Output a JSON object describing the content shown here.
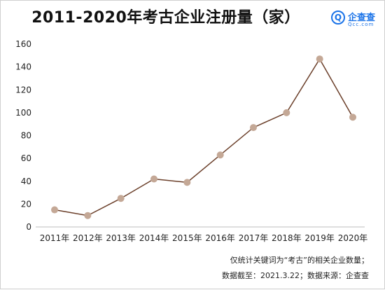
{
  "chart_data": {
    "type": "line",
    "title": "2011-2020年考古企业注册量（家）",
    "categories": [
      "2011年",
      "2012年",
      "2013年",
      "2014年",
      "2015年",
      "2016年",
      "2017年",
      "2018年",
      "2019年",
      "2020年"
    ],
    "values": [
      15,
      10,
      25,
      42,
      39,
      63,
      87,
      100,
      147,
      96
    ],
    "ylim": [
      0,
      160
    ],
    "yticks": [
      0,
      20,
      40,
      60,
      80,
      100,
      120,
      140,
      160
    ],
    "grid": false,
    "legend": "none",
    "line_color": "#6b3f2a",
    "marker_color": "#c4a896"
  },
  "brand": {
    "name": "企查查",
    "domain": "Qcc.com",
    "icon": "qcc-logo-icon"
  },
  "notes": [
    "仅统计关键词为“考古”的相关企业数量；",
    "数据截至：2021.3.22；数据来源：企查查"
  ]
}
